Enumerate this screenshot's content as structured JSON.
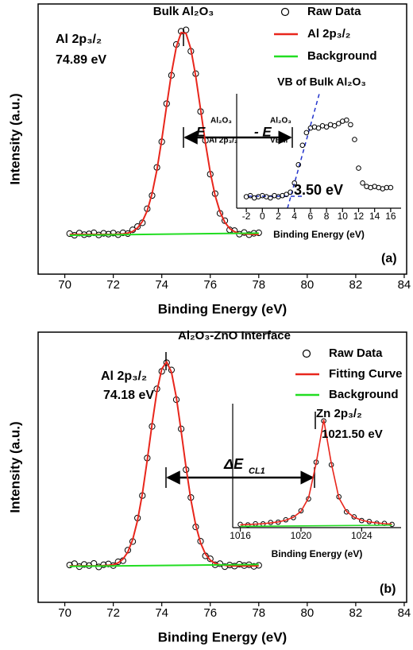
{
  "chart_data": [
    {
      "type": "line",
      "title": "Bulk Al₂O₃",
      "xlabel": "Binding Energy (eV)",
      "ylabel": "Intensity (a.u.)",
      "panel_label": "(a)",
      "xlim": [
        68.9,
        84.1
      ],
      "xticks": [
        70,
        72,
        74,
        76,
        78,
        80,
        82,
        84
      ],
      "ylim": [
        0,
        100
      ],
      "series": [
        {
          "name": "Raw Data",
          "color": "#000000",
          "marker": "circle",
          "x": [
            70.2,
            70.4,
            70.6,
            70.8,
            71.0,
            71.2,
            71.4,
            71.6,
            71.8,
            72.0,
            72.2,
            72.4,
            72.6,
            72.8,
            73.0,
            73.2,
            73.4,
            73.6,
            73.8,
            74.0,
            74.2,
            74.4,
            74.6,
            74.8,
            75.0,
            75.2,
            75.4,
            75.6,
            75.8,
            76.0,
            76.2,
            76.4,
            76.6,
            76.8,
            77.0,
            77.2,
            77.4,
            77.6,
            77.8,
            78.0
          ],
          "values": [
            15.0,
            14.4,
            15.2,
            14.6,
            14.9,
            15.3,
            14.5,
            15.1,
            14.8,
            15.2,
            14.6,
            15.3,
            15.0,
            16.4,
            17.6,
            19.0,
            24.2,
            29.1,
            39.5,
            49.0,
            63.1,
            73.6,
            85.0,
            89.9,
            90.4,
            82.5,
            74.2,
            60.2,
            49.5,
            37.0,
            29.8,
            22.5,
            19.8,
            16.4,
            16.1,
            14.8,
            15.4,
            14.6,
            15.1,
            15.3
          ]
        },
        {
          "name": "Al 2p₃/₂",
          "color": "#e8261c",
          "x": [
            70.2,
            70.4,
            70.6,
            70.8,
            71.0,
            71.2,
            71.4,
            71.6,
            71.8,
            72.0,
            72.2,
            72.4,
            72.6,
            72.8,
            73.0,
            73.2,
            73.4,
            73.6,
            73.8,
            74.0,
            74.2,
            74.4,
            74.6,
            74.8,
            75.0,
            75.2,
            75.4,
            75.6,
            75.8,
            76.0,
            76.2,
            76.4,
            76.6,
            76.8,
            77.0,
            77.2,
            77.4,
            77.6,
            77.8,
            78.0
          ],
          "values": [
            14.7,
            14.7,
            14.7,
            14.7,
            14.7,
            14.7,
            14.7,
            14.7,
            14.7,
            14.7,
            14.8,
            14.9,
            15.2,
            15.8,
            17.1,
            19.5,
            23.5,
            29.8,
            38.6,
            49.8,
            62.3,
            74.4,
            84.1,
            89.4,
            89.1,
            83.3,
            73.3,
            61.0,
            48.6,
            37.7,
            29.1,
            23.1,
            19.2,
            16.9,
            15.7,
            15.1,
            14.9,
            14.8,
            14.7,
            14.7
          ]
        },
        {
          "name": "Background",
          "color": "#22dd22",
          "x": [
            70.2,
            78.0
          ],
          "values": [
            14.4,
            15.2
          ]
        }
      ],
      "annotations": [
        "Al 2p₃/₂",
        "74.89 eV",
        "E",
        "Al₂O₃",
        "Al 2p₃/₂",
        "- E",
        "Al₂O₃",
        "VBM"
      ]
    },
    {
      "type": "line",
      "title": "VB of Bulk Al₂O₃",
      "xlabel": "Binding Energy (eV)",
      "xlim": [
        -3.2,
        17.3
      ],
      "xticks": [
        -2,
        0,
        2,
        4,
        6,
        8,
        10,
        12,
        14,
        16
      ],
      "ylim": [
        0,
        100
      ],
      "series": [
        {
          "color": "#000000",
          "marker": "circle",
          "x": [
            -2,
            -1.5,
            -1,
            -0.5,
            0,
            0.5,
            1,
            1.5,
            2,
            2.5,
            3,
            3.5,
            4,
            4.5,
            5,
            5.5,
            6,
            6.5,
            7,
            7.5,
            8,
            8.5,
            9,
            9.5,
            10,
            10.5,
            11,
            11.5,
            12,
            12.5,
            13,
            13.5,
            14,
            14.5,
            15,
            15.5,
            16
          ],
          "values": [
            10,
            11,
            9,
            10,
            11,
            10,
            9,
            11,
            10,
            11,
            12,
            14,
            22,
            38,
            55,
            66,
            70,
            71,
            70,
            72,
            71,
            73,
            72,
            74,
            76,
            77,
            73,
            60,
            35,
            22,
            19,
            18,
            19,
            18,
            17,
            18,
            18
          ]
        }
      ],
      "annotations": [
        "3.50 eV"
      ]
    },
    {
      "type": "line",
      "title": "Al₂O₃-ZnO Interface",
      "xlabel": "Binding Energy (eV)",
      "ylabel": "Intensity (a.u.)",
      "panel_label": "(b)",
      "xlim": [
        68.9,
        84.1
      ],
      "xticks": [
        70,
        72,
        74,
        76,
        78,
        80,
        82,
        84
      ],
      "ylim": [
        0,
        100
      ],
      "series": [
        {
          "name": "Raw Data",
          "color": "#000000",
          "marker": "circle",
          "x": [
            70.2,
            70.4,
            70.6,
            70.8,
            71.0,
            71.2,
            71.4,
            71.6,
            71.8,
            72.0,
            72.2,
            72.4,
            72.6,
            72.8,
            73.0,
            73.2,
            73.4,
            73.6,
            73.8,
            74.0,
            74.2,
            74.4,
            74.6,
            74.8,
            75.0,
            75.2,
            75.4,
            75.6,
            75.8,
            76.0,
            76.2,
            76.4,
            76.6,
            76.8,
            77.0,
            77.2,
            77.4,
            77.6,
            77.8,
            78.0
          ],
          "values": [
            13.8,
            14.3,
            13.2,
            14.0,
            13.6,
            14.4,
            13.1,
            13.9,
            14.2,
            13.6,
            15.0,
            15.4,
            19.3,
            22.5,
            31.2,
            39.5,
            53.4,
            65.1,
            79.0,
            85.5,
            88.7,
            86.0,
            75.0,
            64.2,
            49.1,
            38.8,
            27.9,
            22.6,
            17.2,
            16.1,
            13.9,
            14.3,
            13.2,
            13.8,
            13.4,
            14.1,
            13.6,
            13.9,
            13.3,
            13.7
          ]
        },
        {
          "name": "Fitting Curve",
          "color": "#e8261c",
          "x": [
            70.2,
            70.4,
            70.6,
            70.8,
            71.0,
            71.2,
            71.4,
            71.6,
            71.8,
            72.0,
            72.2,
            72.4,
            72.6,
            72.8,
            73.0,
            73.2,
            73.4,
            73.6,
            73.8,
            74.0,
            74.2,
            74.4,
            74.6,
            74.8,
            75.0,
            75.2,
            75.4,
            75.6,
            75.8,
            76.0,
            76.2,
            76.4,
            76.6,
            76.8,
            77.0,
            77.2,
            77.4,
            77.6,
            77.8,
            78.0
          ],
          "values": [
            13.5,
            13.5,
            13.5,
            13.5,
            13.5,
            13.5,
            13.5,
            13.6,
            13.7,
            13.9,
            14.6,
            16.0,
            18.6,
            23.2,
            30.3,
            40.2,
            52.6,
            66.0,
            78.1,
            86.4,
            89.0,
            85.2,
            75.9,
            63.3,
            50.0,
            38.0,
            28.6,
            22.0,
            17.9,
            15.6,
            14.4,
            13.9,
            13.7,
            13.5,
            13.5,
            13.5,
            13.5,
            13.5,
            13.5,
            13.5
          ]
        },
        {
          "name": "Background",
          "color": "#22dd22",
          "x": [
            70.2,
            78.0
          ],
          "values": [
            13.3,
            14.0
          ]
        }
      ],
      "annotations": [
        "Al 2p₃/₂",
        "74.18 eV",
        "ΔE",
        "CL1"
      ]
    },
    {
      "type": "line",
      "xlabel": "Binding Energy (eV)",
      "xlim": [
        1015.5,
        1026.6
      ],
      "xticks": [
        1016,
        1020,
        1024
      ],
      "ylim": [
        0,
        100
      ],
      "series": [
        {
          "color": "#000000",
          "marker": "circle",
          "x": [
            1016,
            1016.5,
            1017,
            1017.5,
            1018,
            1018.5,
            1019,
            1019.5,
            1020,
            1020.5,
            1021,
            1021.5,
            1022,
            1022.5,
            1023,
            1023.5,
            1024,
            1024.5,
            1025,
            1025.5,
            1026
          ],
          "values": [
            2.6,
            2.2,
            3.1,
            3.0,
            4.1,
            4.4,
            6.3,
            8.1,
            13.6,
            23.2,
            52.8,
            86.1,
            50.7,
            24.9,
            12.7,
            8.7,
            5.7,
            4.9,
            3.5,
            3.4,
            2.6
          ]
        },
        {
          "color": "#e8261c",
          "x": [
            1016,
            1016.5,
            1017,
            1017.5,
            1018,
            1018.5,
            1019,
            1019.5,
            1020,
            1020.5,
            1021,
            1021.5,
            1022,
            1022.5,
            1023,
            1023.5,
            1024,
            1024.5,
            1025,
            1025.5,
            1026
          ],
          "values": [
            2.3,
            2.5,
            2.8,
            3.2,
            3.8,
            4.6,
            6.0,
            8.4,
            13.1,
            24.0,
            51.9,
            87.0,
            51.9,
            24.0,
            13.1,
            8.4,
            6.0,
            4.6,
            3.8,
            3.2,
            2.8
          ]
        },
        {
          "color": "#22dd22",
          "x": [
            1016,
            1026
          ],
          "values": [
            1.0,
            2.0
          ]
        }
      ],
      "annotations": [
        "Zn 2p₃/₂",
        "1021.50 eV"
      ]
    }
  ]
}
